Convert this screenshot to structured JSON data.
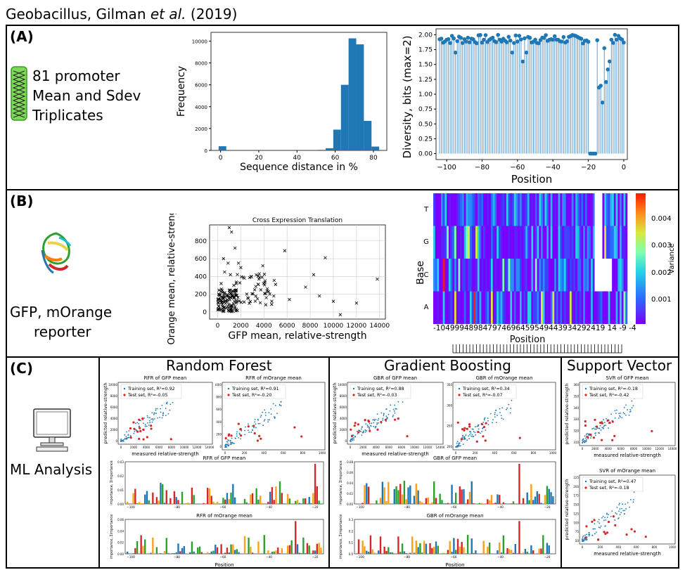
{
  "figure_title_pre": "Geobacillus, Gilman ",
  "figure_title_em": "et al.",
  "figure_title_post": " (2019)",
  "panelA": {
    "label": "(A)",
    "info_lines": [
      "81 promoter",
      "Mean and Sdev",
      "Triplicates"
    ],
    "hist": {
      "xlabel": "Sequence distance in %",
      "ylabel": "Frequency",
      "xticks": [
        "0",
        "20",
        "40",
        "60",
        "80"
      ],
      "yticks": [
        "0",
        "2000",
        "4000",
        "6000",
        "8000",
        "10000"
      ]
    },
    "diversity": {
      "xlabel": "Position",
      "ylabel": "Diversity, bits (max=2)",
      "xticks": [
        "−100",
        "−80",
        "−60",
        "−40",
        "−20",
        "0"
      ],
      "yticks": [
        "0.00",
        "0.25",
        "0.50",
        "0.75",
        "1.00",
        "1.25",
        "1.50",
        "1.75",
        "2.00"
      ]
    }
  },
  "panelB": {
    "label": "(B)",
    "reporter_lines": [
      "GFP, mOrange",
      "reporter"
    ],
    "scatter": {
      "title": "Cross Expression Translation",
      "xlabel": "GFP mean, relative-strength",
      "ylabel": "mOrange mean, relative-strength",
      "xticks": [
        "0",
        "2000",
        "4000",
        "6000",
        "8000",
        "10000",
        "12000",
        "14000"
      ],
      "yticks": [
        "0",
        "200",
        "400",
        "600",
        "800"
      ]
    },
    "heatmap": {
      "xlabel": "Position",
      "ylabel": "Base",
      "rows": [
        "T",
        "G",
        "C",
        "A"
      ],
      "xticklabels": "-104999489847974696459549443934292419 14 -9 -4",
      "colorbar_label": "Variance",
      "colorbar_ticks": [
        "0.004",
        "0.003",
        "0.002",
        "0.001"
      ]
    }
  },
  "panelC": {
    "label": "(C)",
    "ml_label": "ML Analysis",
    "columns": [
      "Random Forest",
      "Gradient Boosting",
      "Support Vector"
    ],
    "rf": {
      "gfp_title": "RFR of GFP mean",
      "mor_title": "RFR of mOrange mean",
      "gfp_train": "Training set, R²=0.92",
      "gfp_test": "Test set, R²=-0.05",
      "mor_train": "Training set, R²=0.91",
      "mor_test": "Test set, R²=-0.20",
      "logo1_title": "RFR of GFP mean",
      "logo2_title": "RFR of mOrange mean"
    },
    "gb": {
      "gfp_title": "GBR of GFP mean",
      "mor_title": "GBR of mOrange mean",
      "gfp_train": "Training set, R²=0.88",
      "gfp_test": "Test set, R²=-0.03",
      "mor_train": "Training set, R²=0.34",
      "mor_test": "Test set, R²=-0.07",
      "logo1_title": "GBR of GFP mean",
      "logo2_title": "GBR of mOrange mean"
    },
    "sv": {
      "gfp_title": "SVR of GFP mean",
      "mor_title": "SVR of mOrange mean",
      "gfp_train": "Training set, R²=-0.18",
      "gfp_test": "Test set, R²=-0.42",
      "mor_train": "Training set, R²=0.47",
      "mor_test": "Test set, R²=-0.18"
    },
    "axis_measured": "measured relative-strength",
    "axis_predicted": "predicted relative-strength",
    "axis_position": "Position",
    "axis_importance": "importance, Σimportance"
  },
  "colors": {
    "bar": "#1f77b4",
    "train": "#1f77b4",
    "test": "#d62728"
  }
}
